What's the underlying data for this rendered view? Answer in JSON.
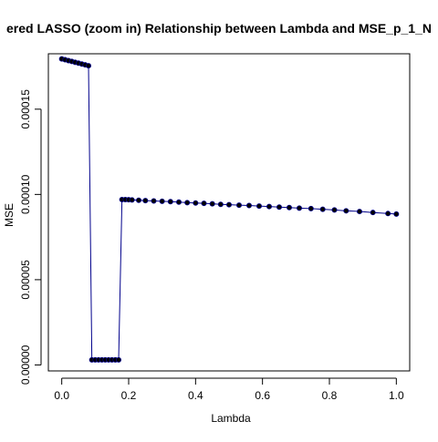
{
  "chart_data": {
    "type": "line",
    "title": "ered LASSO (zoom in) Relationship between Lambda and MSE_p_1_N",
    "xlabel": "Lambda",
    "ylabel": "MSE",
    "xlim": [
      -0.04,
      1.04
    ],
    "ylim": [
      -3.5e-06,
      0.0001825
    ],
    "x_ticks": [
      0.0,
      0.2,
      0.4,
      0.6,
      0.8,
      1.0
    ],
    "x_tick_labels": [
      "0.0",
      "0.2",
      "0.4",
      "0.6",
      "0.8",
      "1.0"
    ],
    "y_ticks": [
      0.0,
      5e-05,
      0.0001,
      0.00015
    ],
    "y_tick_labels": [
      "0.00000",
      "0.00005",
      "0.00010",
      "0.00015"
    ],
    "grid": false,
    "line_color": "#00008b",
    "point_color": "#000000",
    "series": [
      {
        "x": [
          0.0,
          0.01,
          0.02,
          0.03,
          0.04,
          0.05,
          0.06,
          0.07,
          0.08,
          0.09,
          0.1,
          0.11,
          0.12,
          0.13,
          0.14,
          0.15,
          0.16,
          0.17,
          0.18,
          0.19,
          0.2,
          0.21,
          0.23,
          0.25,
          0.275,
          0.3,
          0.325,
          0.35,
          0.375,
          0.4,
          0.425,
          0.45,
          0.475,
          0.5,
          0.53,
          0.56,
          0.59,
          0.62,
          0.65,
          0.68,
          0.71,
          0.745,
          0.78,
          0.815,
          0.85,
          0.89,
          0.93,
          0.975,
          1.0
        ],
        "y": [
          0.0001795,
          0.000179,
          0.0001785,
          0.000178,
          0.0001775,
          0.000177,
          0.0001765,
          0.000176,
          0.0001755,
          3e-06,
          3e-06,
          3e-06,
          3e-06,
          3e-06,
          3e-06,
          3e-06,
          3e-06,
          3e-06,
          9.7e-05,
          9.7e-05,
          9.69e-05,
          9.68e-05,
          9.66e-05,
          9.64e-05,
          9.62e-05,
          9.6e-05,
          9.58e-05,
          9.55e-05,
          9.52e-05,
          9.5e-05,
          9.48e-05,
          9.45e-05,
          9.42e-05,
          9.4e-05,
          9.37e-05,
          9.35e-05,
          9.32e-05,
          9.29e-05,
          9.26e-05,
          9.23e-05,
          9.2e-05,
          9.17e-05,
          9.13e-05,
          9.09e-05,
          9.04e-05,
          9e-05,
          8.94e-05,
          8.88e-05,
          8.85e-05
        ]
      }
    ]
  }
}
